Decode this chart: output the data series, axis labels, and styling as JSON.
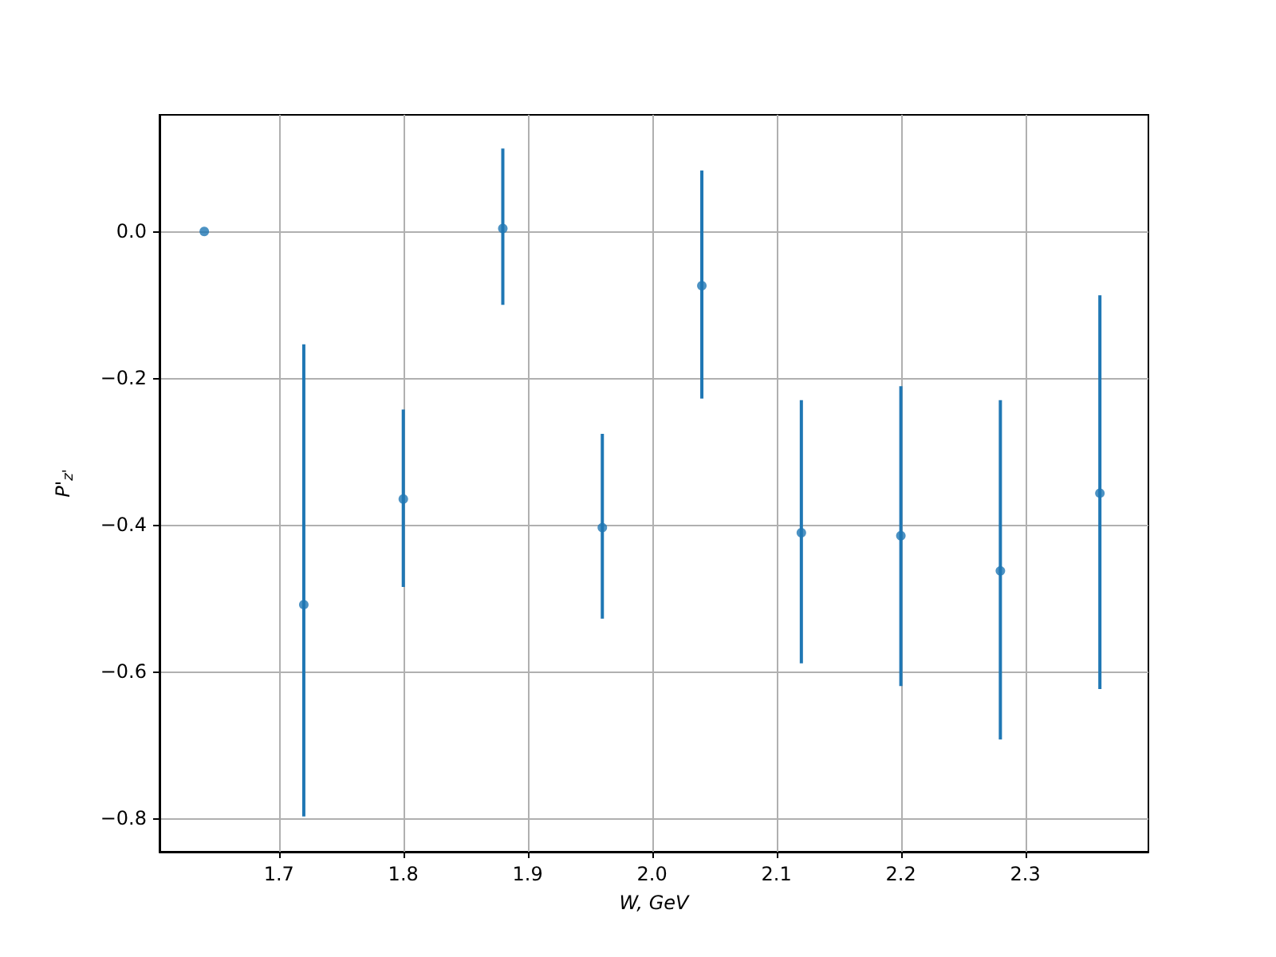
{
  "chart_data": {
    "type": "scatter",
    "xlabel": "W, GeV",
    "ylabel": "P'$_{z'}$",
    "x": [
      1.64,
      1.72,
      1.8,
      1.88,
      1.96,
      2.04,
      2.12,
      2.2,
      2.28,
      2.36
    ],
    "values": [
      0.0,
      -0.509,
      -0.365,
      0.004,
      -0.404,
      -0.074,
      -0.411,
      -0.415,
      -0.463,
      -0.357
    ],
    "errors": [
      null,
      [
        -0.798,
        -0.154
      ],
      [
        -0.485,
        -0.243
      ],
      [
        -0.1,
        0.113
      ],
      [
        -0.528,
        -0.276
      ],
      [
        -0.228,
        0.083
      ],
      [
        -0.589,
        -0.23
      ],
      [
        -0.62,
        -0.211
      ],
      [
        -0.693,
        -0.23
      ],
      [
        -0.624,
        -0.087
      ]
    ],
    "color": "#1f77b4",
    "marker": "circle",
    "xlim": [
      1.604,
      2.399
    ],
    "ylim": [
      -0.846,
      0.159
    ],
    "xticks": [
      {
        "value": 1.7,
        "label": "1.7"
      },
      {
        "value": 1.8,
        "label": "1.8"
      },
      {
        "value": 1.9,
        "label": "1.9"
      },
      {
        "value": 2.0,
        "label": "2.0"
      },
      {
        "value": 2.1,
        "label": "2.1"
      },
      {
        "value": 2.2,
        "label": "2.2"
      },
      {
        "value": 2.3,
        "label": "2.3"
      }
    ],
    "yticks": [
      {
        "value": -0.8,
        "label": "−0.8"
      },
      {
        "value": -0.6,
        "label": "−0.6"
      },
      {
        "value": -0.4,
        "label": "−0.4"
      },
      {
        "value": -0.2,
        "label": "−0.2"
      },
      {
        "value": 0,
        "label": "0.0"
      }
    ],
    "grid": true
  }
}
